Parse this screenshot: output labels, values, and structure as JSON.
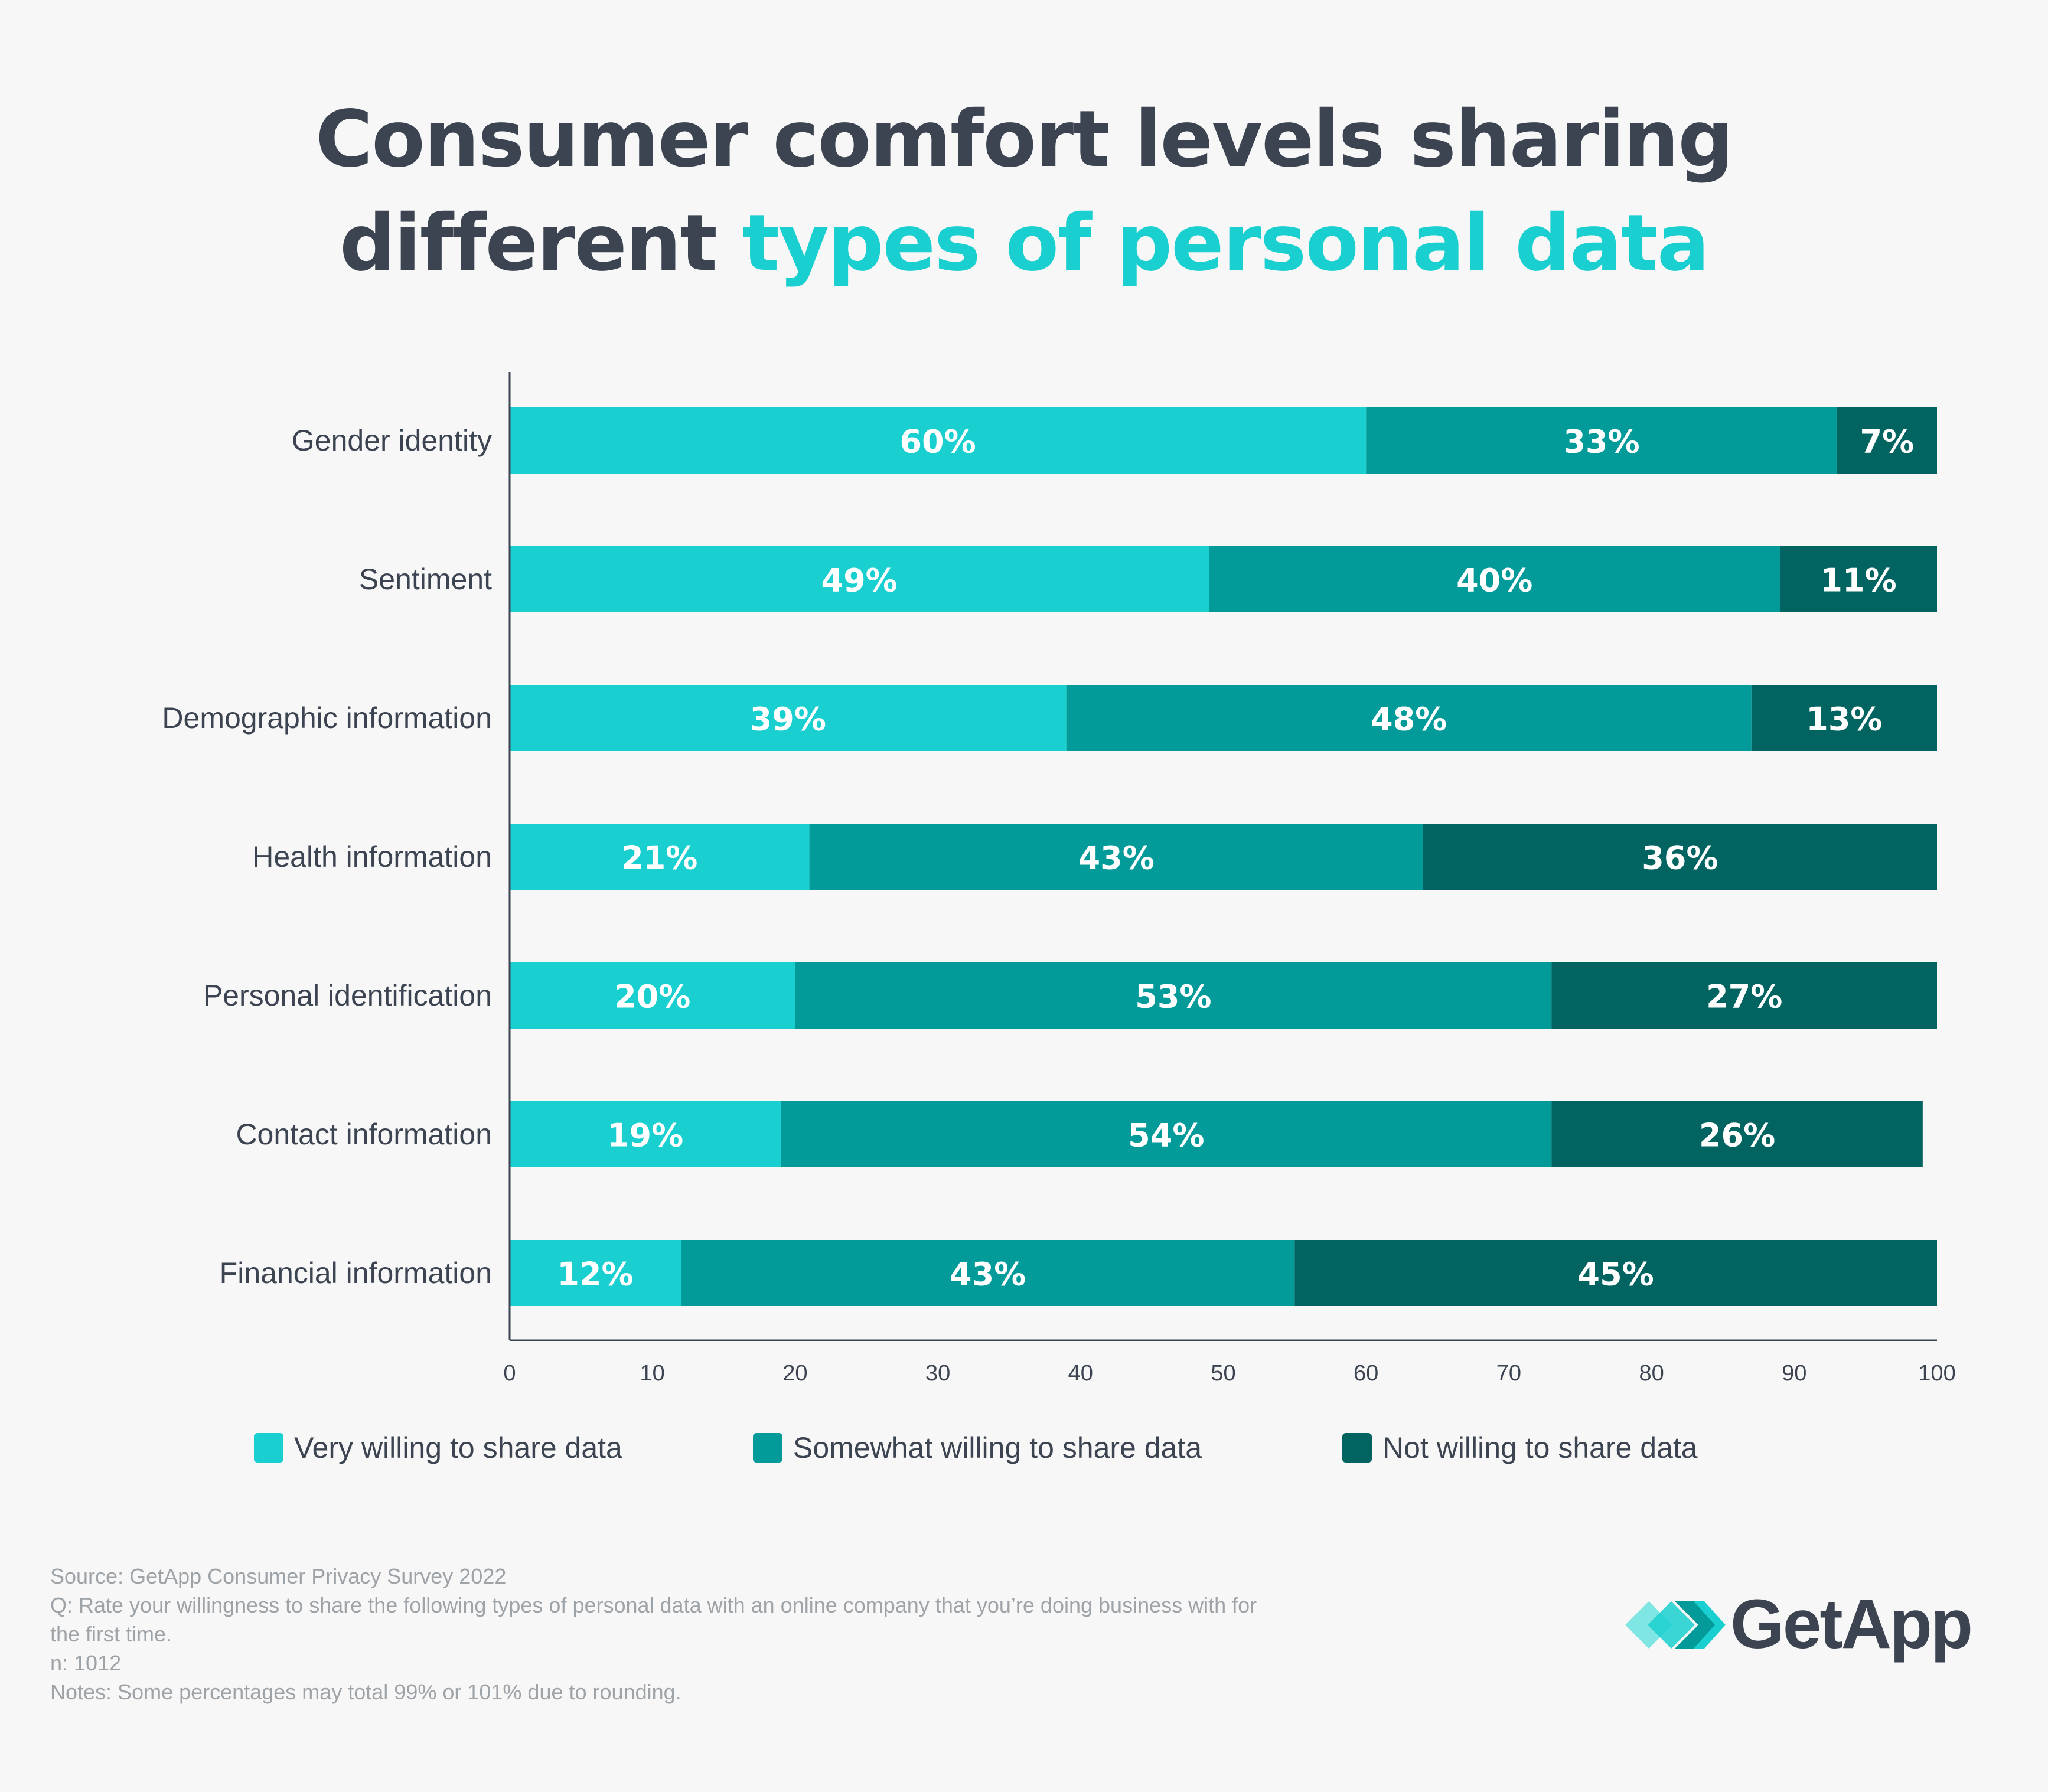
{
  "title": {
    "line1": "Consumer comfort levels sharing",
    "line2_plain": "different ",
    "line2_accent": "types of personal data"
  },
  "colors": {
    "very": "#19cfcf",
    "somewhat": "#029b9a",
    "not": "#026461",
    "text": "#3b4450",
    "accent": "#19cfcf",
    "note": "#9ea3a8"
  },
  "chart_data": {
    "type": "bar",
    "orientation": "horizontal",
    "stacked": true,
    "categories": [
      "Gender identity",
      "Sentiment",
      "Demographic information",
      "Health information",
      "Personal identification",
      "Contact information",
      "Financial information"
    ],
    "series": [
      {
        "name": "Very willing to share data",
        "values": [
          60,
          49,
          39,
          21,
          20,
          19,
          12
        ]
      },
      {
        "name": "Somewhat willing to share data",
        "values": [
          33,
          40,
          48,
          43,
          53,
          54,
          43
        ]
      },
      {
        "name": "Not willing to share data",
        "values": [
          7,
          11,
          13,
          36,
          27,
          26,
          45
        ]
      }
    ],
    "data_label_suffix": "%",
    "xlim": [
      0,
      100
    ],
    "xticks": [
      0,
      10,
      20,
      30,
      40,
      50,
      60,
      70,
      80,
      90,
      100
    ],
    "xlabel": "",
    "ylabel": "",
    "grid": false,
    "legend_position": "bottom"
  },
  "legend": {
    "items": [
      "Very willing to share data",
      "Somewhat willing to share data",
      "Not willing to share data"
    ]
  },
  "footnotes": {
    "source": "Source: GetApp Consumer Privacy Survey 2022",
    "question_line1": "Q: Rate your willingness to share the following types of personal data with an online company that you’re doing business with for",
    "question_line2": "the first time.",
    "n": "n: 1012",
    "notes": "Notes: Some percentages may total 99% or 101% due to rounding."
  },
  "logo": {
    "text": "GetApp",
    "icon": "getapp-chevrons-icon"
  }
}
